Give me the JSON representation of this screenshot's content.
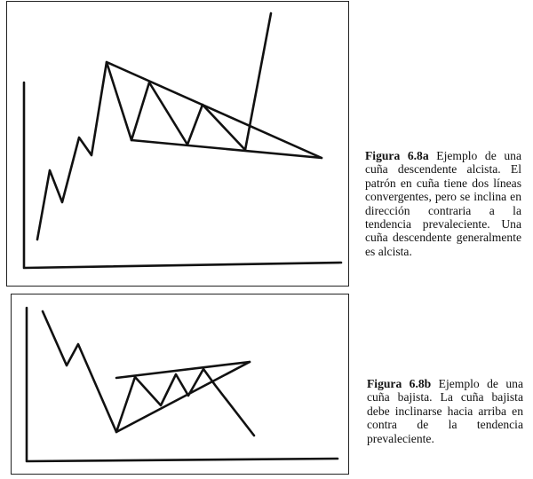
{
  "figure_a": {
    "label": "Figura 6.8a",
    "text": "Ejemplo de una cuña descendente alcista. El patrón en cuña tiene dos líneas convergentes, pero se inclina en dirección contraria a la tendencia prevaleciente. Una cuña descendente generalmente es alcista."
  },
  "figure_b": {
    "label": "Figura 6.8b",
    "text": "Ejemplo de una cuña bajista. La cuña bajista debe inclinarse hacia arriba en contra de la tendencia prevaleciente."
  },
  "colors": {
    "stroke": "#111111",
    "frame": "#222222"
  }
}
